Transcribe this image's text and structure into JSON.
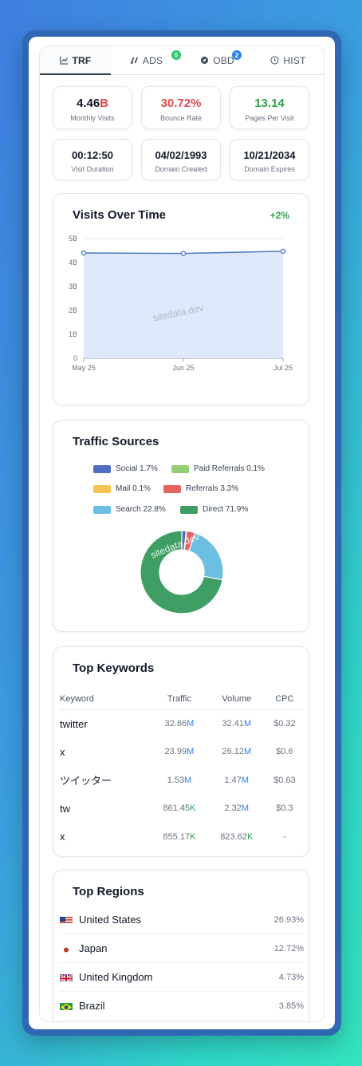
{
  "tabs": [
    {
      "label": "TRF",
      "icon": "chart-line-icon",
      "active": true
    },
    {
      "label": "ADS",
      "icon": "ads-icon",
      "badge": "0"
    },
    {
      "label": "OBD",
      "icon": "compass-icon",
      "badge": "2"
    },
    {
      "label": "HIST",
      "icon": "clock-icon"
    }
  ],
  "stats": {
    "monthly_visits": {
      "value": "4.46",
      "unit": "B",
      "label": "Monthly Visits"
    },
    "bounce_rate": {
      "value": "30.72%",
      "label": "Bounce Rate"
    },
    "pages_per_visit": {
      "value": "13.14",
      "label": "Pages Per Visit"
    },
    "visit_duration": {
      "value": "00:12:50",
      "label": "Visit Duration"
    },
    "domain_created": {
      "value": "04/02/1993",
      "label": "Domain Created"
    },
    "domain_expires": {
      "value": "10/21/2034",
      "label": "Domain Expires"
    }
  },
  "visits_card": {
    "title": "Visits Over Time",
    "change": "+2%",
    "watermark": "sitedata.dev"
  },
  "traffic_card": {
    "title": "Traffic Sources",
    "watermark": "sitedata.dev"
  },
  "keywords_card": {
    "title": "Top Keywords",
    "headers": [
      "Keyword",
      "Traffic",
      "Volume",
      "CPC"
    ],
    "rows": [
      {
        "keyword": "twitter",
        "traffic": "32.86",
        "traffic_unit": "M",
        "volume": "32.41",
        "volume_unit": "M",
        "cpc": "$0.32"
      },
      {
        "keyword": "x",
        "traffic": "23.99",
        "traffic_unit": "M",
        "volume": "26.12",
        "volume_unit": "M",
        "cpc": "$0.6"
      },
      {
        "keyword": "ツイッター",
        "traffic": "1.53",
        "traffic_unit": "M",
        "volume": "1.47",
        "volume_unit": "M",
        "cpc": "$0.63"
      },
      {
        "keyword": "tw",
        "traffic": "861.45",
        "traffic_unit": "K",
        "volume": "2.32",
        "volume_unit": "M",
        "cpc": "$0.3"
      },
      {
        "keyword": "x",
        "traffic": "855.17",
        "traffic_unit": "K",
        "volume": "823.62",
        "volume_unit": "K",
        "cpc": "-"
      }
    ]
  },
  "regions_card": {
    "title": "Top Regions",
    "rows": [
      {
        "name": "United States",
        "pct": "26.93%",
        "flag": "us-flag-icon"
      },
      {
        "name": "Japan",
        "pct": "12.72%",
        "flag": "jp-flag-icon"
      },
      {
        "name": "United Kingdom",
        "pct": "4.73%",
        "flag": "gb-flag-icon"
      },
      {
        "name": "Brazil",
        "pct": "3.85%",
        "flag": "br-flag-icon"
      }
    ]
  },
  "colors": {
    "red": "#e5484d",
    "green": "#30a24a",
    "line": "#4a78c8",
    "fill": "#dde7fb"
  },
  "chart_data": [
    {
      "type": "area",
      "title": "Visits Over Time",
      "categories": [
        "May 25",
        "Jun 25",
        "Jul 25"
      ],
      "values": [
        4.4,
        4.38,
        4.47
      ],
      "unit": "B",
      "ylim": [
        0,
        5
      ],
      "yticks": [
        "0",
        "1B",
        "2B",
        "3B",
        "4B",
        "5B"
      ],
      "grid": true
    },
    {
      "type": "pie",
      "title": "Traffic Sources",
      "legend_position": "top",
      "series": [
        {
          "name": "Social",
          "label": "Social 1.7%",
          "value": 1.7,
          "color": "#4e6ec4"
        },
        {
          "name": "Paid Referrals",
          "label": "Paid Referrals 0.1%",
          "value": 0.1,
          "color": "#93d074"
        },
        {
          "name": "Mail",
          "label": "Mail 0.1%",
          "value": 0.1,
          "color": "#f5c451"
        },
        {
          "name": "Referrals",
          "label": "Referrals 3.3%",
          "value": 3.3,
          "color": "#e86262"
        },
        {
          "name": "Search",
          "label": "Search 22.8%",
          "value": 22.8,
          "color": "#6cbfe0"
        },
        {
          "name": "Direct",
          "label": "Direct 71.9%",
          "value": 71.9,
          "color": "#3f9e63"
        }
      ]
    }
  ]
}
